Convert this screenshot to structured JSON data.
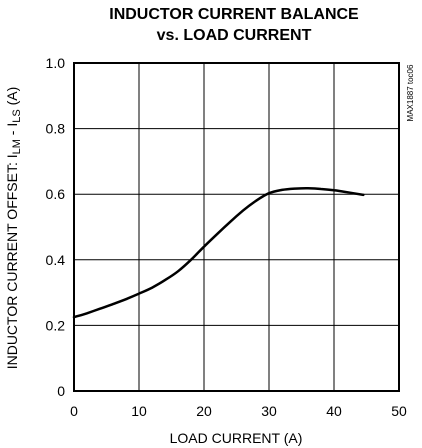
{
  "chart_data": {
    "type": "line",
    "title_line1": "INDUCTOR CURRENT BALANCE",
    "title_line2": "vs. LOAD CURRENT",
    "xlabel": "LOAD CURRENT (A)",
    "ylabel_prefix": "INDUCTOR CURRENT OFFSET: I",
    "ylabel_sub1": "LM",
    "ylabel_mid": " - I",
    "ylabel_sub2": "LS",
    "ylabel_suffix": " (A)",
    "part_id": "MAX1887 toc06",
    "xlim": [
      0,
      50
    ],
    "ylim": [
      0,
      1.0
    ],
    "x_ticks": [
      0,
      10,
      20,
      30,
      40,
      50
    ],
    "x_tick_labels": [
      "0",
      "10",
      "20",
      "30",
      "40",
      "50"
    ],
    "y_ticks": [
      0,
      0.2,
      0.4,
      0.6,
      0.8,
      1.0
    ],
    "y_tick_labels": [
      "0",
      "0.2",
      "0.4",
      "0.6",
      "0.8",
      "1.0"
    ],
    "grid": true,
    "series": [
      {
        "x": [
          0,
          2,
          4,
          6,
          8,
          10,
          12,
          14,
          16,
          18,
          20,
          22,
          24,
          26,
          28,
          30,
          32,
          34,
          36,
          38,
          40,
          42,
          44.5
        ],
        "y": [
          0.225,
          0.237,
          0.251,
          0.265,
          0.28,
          0.297,
          0.315,
          0.338,
          0.365,
          0.4,
          0.44,
          0.478,
          0.515,
          0.55,
          0.58,
          0.603,
          0.613,
          0.617,
          0.618,
          0.616,
          0.612,
          0.606,
          0.598
        ]
      }
    ]
  }
}
